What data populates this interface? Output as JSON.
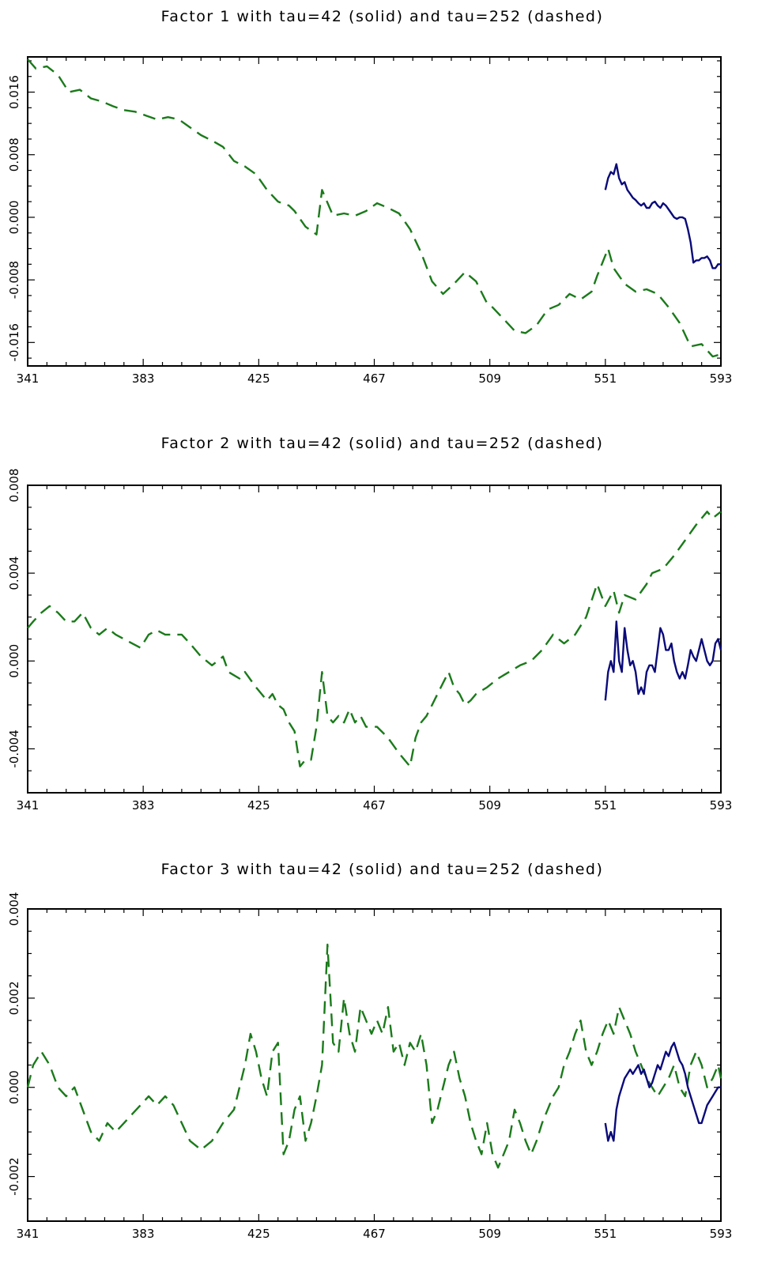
{
  "chart_data": [
    {
      "type": "line",
      "title": "Factor 1 with tau=42 (solid) and tau=252 (dashed)",
      "xlabel": "",
      "ylabel": "",
      "xlim": [
        341,
        593
      ],
      "ylim": [
        -0.019,
        0.0205
      ],
      "xticks": [
        341,
        383,
        425,
        467,
        509,
        551,
        593
      ],
      "xtick_labels": [
        "341",
        "383",
        "425",
        "467",
        "509",
        "551",
        "593"
      ],
      "yticks": [
        -0.016,
        -0.008,
        0.0,
        0.008,
        0.016
      ],
      "ytick_labels": [
        "-0.016",
        "-0.008",
        "0.000",
        "0.008",
        "0.016"
      ],
      "grid": false,
      "series": [
        {
          "style": "dashed",
          "color": "#1a7a1a",
          "x": [
            341,
            344,
            348,
            352,
            356,
            360,
            364,
            368,
            372,
            376,
            380,
            384,
            388,
            392,
            396,
            400,
            404,
            408,
            412,
            416,
            420,
            424,
            428,
            432,
            436,
            438,
            442,
            446,
            448,
            452,
            456,
            460,
            464,
            468,
            472,
            476,
            480,
            484,
            488,
            492,
            496,
            500,
            504,
            508,
            510,
            514,
            518,
            522,
            526,
            530,
            534,
            538,
            542,
            546,
            548,
            552,
            554,
            558,
            562,
            566,
            570,
            574,
            578,
            582,
            586,
            590,
            593
          ],
          "y": [
            0.0202,
            0.019,
            0.0193,
            0.0182,
            0.016,
            0.0163,
            0.0152,
            0.0148,
            0.0142,
            0.0137,
            0.0135,
            0.013,
            0.0125,
            0.0128,
            0.0125,
            0.0115,
            0.0105,
            0.0098,
            0.009,
            0.0072,
            0.0065,
            0.0055,
            0.0035,
            0.002,
            0.0015,
            0.0008,
            -0.0012,
            -0.0022,
            0.0035,
            0.0002,
            0.0005,
            0.0002,
            0.0008,
            0.0018,
            0.0012,
            0.0005,
            -0.0015,
            -0.0045,
            -0.0082,
            -0.0098,
            -0.0085,
            -0.007,
            -0.0082,
            -0.011,
            -0.0115,
            -0.013,
            -0.0145,
            -0.0148,
            -0.0138,
            -0.0118,
            -0.0112,
            -0.0098,
            -0.0105,
            -0.0095,
            -0.0075,
            -0.004,
            -0.0065,
            -0.0085,
            -0.0095,
            -0.0092,
            -0.0098,
            -0.0115,
            -0.0135,
            -0.0165,
            -0.0162,
            -0.0178,
            -0.0175
          ]
        },
        {
          "style": "solid",
          "color": "#0a0a7a",
          "x": [
            551,
            552,
            553,
            554,
            555,
            556,
            557,
            558,
            559,
            560,
            561,
            562,
            563,
            564,
            565,
            566,
            567,
            568,
            569,
            570,
            571,
            572,
            573,
            574,
            575,
            576,
            577,
            578,
            579,
            580,
            581,
            582,
            583,
            584,
            585,
            586,
            587,
            588,
            589,
            590,
            591,
            592,
            593
          ],
          "y": [
            0.0035,
            0.005,
            0.0058,
            0.0055,
            0.0068,
            0.005,
            0.0042,
            0.0045,
            0.0035,
            0.003,
            0.0025,
            0.0022,
            0.0018,
            0.0015,
            0.0018,
            0.0012,
            0.0012,
            0.0018,
            0.002,
            0.0015,
            0.0012,
            0.0018,
            0.0015,
            0.001,
            0.0005,
            0.0,
            -0.0002,
            0.0,
            0.0,
            -0.0002,
            -0.0015,
            -0.0032,
            -0.0058,
            -0.0055,
            -0.0055,
            -0.0052,
            -0.0052,
            -0.005,
            -0.0055,
            -0.0065,
            -0.0065,
            -0.006,
            -0.006
          ]
        }
      ]
    },
    {
      "type": "line",
      "title": "Factor 2 with tau=42 (solid) and tau=252 (dashed)",
      "xlabel": "",
      "ylabel": "",
      "xlim": [
        341,
        593
      ],
      "ylim": [
        -0.006,
        0.008
      ],
      "xticks": [
        341,
        383,
        425,
        467,
        509,
        551,
        593
      ],
      "xtick_labels": [
        "341",
        "383",
        "425",
        "467",
        "509",
        "551",
        "593"
      ],
      "yticks": [
        -0.004,
        0.0,
        0.004,
        0.008
      ],
      "ytick_labels": [
        "-0.004",
        "0.000",
        "0.004",
        "0.008"
      ],
      "grid": false,
      "series": [
        {
          "style": "dashed",
          "color": "#1a7a1a",
          "x": [
            341,
            343,
            346,
            349,
            352,
            355,
            358,
            361,
            364,
            367,
            370,
            373,
            376,
            379,
            382,
            385,
            388,
            391,
            394,
            397,
            400,
            404,
            408,
            412,
            414,
            418,
            420,
            424,
            428,
            430,
            432,
            434,
            436,
            438,
            440,
            442,
            444,
            446,
            448,
            450,
            452,
            454,
            456,
            458,
            460,
            462,
            464,
            468,
            472,
            476,
            480,
            482,
            484,
            486,
            488,
            490,
            492,
            494,
            496,
            498,
            500,
            502,
            504,
            508,
            512,
            516,
            520,
            524,
            528,
            532,
            536,
            540,
            544,
            548,
            551,
            554,
            556,
            558,
            562,
            566,
            568,
            572,
            576,
            580,
            584,
            588,
            590,
            593
          ],
          "y": [
            0.0015,
            0.0018,
            0.0022,
            0.0025,
            0.0022,
            0.0018,
            0.0018,
            0.0022,
            0.0015,
            0.0012,
            0.0015,
            0.0012,
            0.001,
            0.0008,
            0.0006,
            0.0012,
            0.0014,
            0.0012,
            0.0012,
            0.0012,
            0.0008,
            0.0002,
            -0.0002,
            0.0002,
            -0.0005,
            -0.0008,
            -0.0005,
            -0.0012,
            -0.0018,
            -0.0015,
            -0.002,
            -0.0022,
            -0.0028,
            -0.0032,
            -0.0048,
            -0.0045,
            -0.0045,
            -0.003,
            -0.0005,
            -0.0025,
            -0.0028,
            -0.0025,
            -0.0028,
            -0.0022,
            -0.0028,
            -0.0025,
            -0.003,
            -0.003,
            -0.0035,
            -0.0042,
            -0.0048,
            -0.0035,
            -0.0028,
            -0.0025,
            -0.002,
            -0.0015,
            -0.001,
            -0.0005,
            -0.0012,
            -0.0015,
            -0.002,
            -0.0018,
            -0.0015,
            -0.0012,
            -0.0008,
            -0.0005,
            -0.0002,
            0.0,
            0.0005,
            0.0012,
            0.0008,
            0.0012,
            0.002,
            0.0035,
            0.0025,
            0.0032,
            0.0022,
            0.003,
            0.0028,
            0.0035,
            0.004,
            0.0042,
            0.0048,
            0.0055,
            0.0062,
            0.0068,
            0.0065,
            0.0068
          ]
        },
        {
          "style": "solid",
          "color": "#0a0a7a",
          "x": [
            551,
            552,
            553,
            554,
            555,
            556,
            557,
            558,
            559,
            560,
            561,
            562,
            563,
            564,
            565,
            566,
            567,
            568,
            569,
            570,
            571,
            572,
            573,
            574,
            575,
            576,
            577,
            578,
            579,
            580,
            581,
            582,
            583,
            584,
            585,
            586,
            587,
            588,
            589,
            590,
            591,
            592,
            593
          ],
          "y": [
            -0.0018,
            -0.0005,
            0.0,
            -0.0005,
            0.0018,
            0.0,
            -0.0005,
            0.0015,
            0.0005,
            -0.0002,
            0.0,
            -0.0005,
            -0.0015,
            -0.0012,
            -0.0015,
            -0.0005,
            -0.0002,
            -0.0002,
            -0.0005,
            0.0005,
            0.0015,
            0.0012,
            0.0005,
            0.0005,
            0.0008,
            0.0,
            -0.0005,
            -0.0008,
            -0.0005,
            -0.0008,
            -0.0002,
            0.0005,
            0.0002,
            0.0,
            0.0005,
            0.001,
            0.0005,
            0.0,
            -0.0002,
            0.0,
            0.0008,
            0.001,
            0.0005
          ]
        }
      ]
    },
    {
      "type": "line",
      "title": "Factor 3 with tau=42 (solid) and tau=252 (dashed)",
      "xlabel": "",
      "ylabel": "",
      "xlim": [
        341,
        593
      ],
      "ylim": [
        -0.003,
        0.004
      ],
      "xticks": [
        341,
        383,
        425,
        467,
        509,
        551,
        593
      ],
      "xtick_labels": [
        "341",
        "383",
        "425",
        "467",
        "509",
        "551",
        "593"
      ],
      "yticks": [
        -0.002,
        0.0,
        0.002,
        0.004
      ],
      "ytick_labels": [
        "-0.002",
        "0.000",
        "0.002",
        "0.004"
      ],
      "grid": false,
      "series": [
        {
          "style": "dashed",
          "color": "#1a7a1a",
          "x": [
            341,
            343,
            346,
            349,
            352,
            355,
            358,
            361,
            364,
            367,
            370,
            373,
            376,
            379,
            382,
            385,
            388,
            391,
            394,
            397,
            400,
            404,
            408,
            412,
            416,
            418,
            420,
            422,
            424,
            426,
            428,
            430,
            432,
            434,
            436,
            438,
            440,
            442,
            444,
            446,
            448,
            450,
            452,
            454,
            456,
            458,
            460,
            462,
            464,
            466,
            468,
            470,
            472,
            474,
            476,
            478,
            480,
            482,
            484,
            486,
            488,
            490,
            492,
            494,
            496,
            498,
            500,
            502,
            504,
            506,
            508,
            510,
            512,
            514,
            516,
            518,
            520,
            522,
            524,
            526,
            528,
            530,
            532,
            534,
            536,
            538,
            540,
            542,
            544,
            546,
            548,
            550,
            552,
            554,
            556,
            558,
            560,
            562,
            564,
            566,
            568,
            570,
            572,
            574,
            576,
            578,
            580,
            582,
            584,
            586,
            588,
            590,
            592,
            593
          ],
          "y": [
            0.0,
            0.0005,
            0.0008,
            0.0005,
            0.0,
            -0.0002,
            0.0,
            -0.0005,
            -0.001,
            -0.0012,
            -0.0008,
            -0.001,
            -0.0008,
            -0.0006,
            -0.0004,
            -0.0002,
            -0.0004,
            -0.0002,
            -0.0004,
            -0.0008,
            -0.0012,
            -0.0014,
            -0.0012,
            -0.0008,
            -0.0005,
            0.0,
            0.0005,
            0.0012,
            0.0008,
            0.0002,
            -0.0002,
            0.0008,
            0.001,
            -0.0015,
            -0.0012,
            -0.0005,
            -0.0002,
            -0.0012,
            -0.0008,
            -0.0002,
            0.0005,
            0.0032,
            0.001,
            0.0008,
            0.002,
            0.0012,
            0.0008,
            0.0018,
            0.0015,
            0.0012,
            0.0015,
            0.0012,
            0.0018,
            0.0008,
            0.001,
            0.0005,
            0.001,
            0.0008,
            0.0012,
            0.0005,
            -0.0008,
            -0.0005,
            0.0,
            0.0005,
            0.0008,
            0.0002,
            -0.0002,
            -0.0008,
            -0.0012,
            -0.0015,
            -0.0008,
            -0.0015,
            -0.0018,
            -0.0015,
            -0.0012,
            -0.0005,
            -0.0008,
            -0.0012,
            -0.0015,
            -0.0012,
            -0.0008,
            -0.0005,
            -0.0002,
            0.0,
            0.0005,
            0.0008,
            0.0012,
            0.0015,
            0.0008,
            0.0005,
            0.0008,
            0.0012,
            0.0015,
            0.0012,
            0.0018,
            0.0015,
            0.0012,
            0.0008,
            0.0005,
            0.0002,
            0.0,
            -0.0002,
            0.0,
            0.0002,
            0.0005,
            0.0,
            -0.0002,
            0.0005,
            0.0008,
            0.0005,
            0.0,
            0.0002,
            0.0005,
            0.0002
          ]
        },
        {
          "style": "solid",
          "color": "#0a0a7a",
          "x": [
            551,
            552,
            553,
            554,
            555,
            556,
            557,
            558,
            559,
            560,
            561,
            562,
            563,
            564,
            565,
            566,
            567,
            568,
            569,
            570,
            571,
            572,
            573,
            574,
            575,
            576,
            577,
            578,
            579,
            580,
            581,
            582,
            583,
            584,
            585,
            586,
            587,
            588,
            589,
            590,
            591,
            592,
            593
          ],
          "y": [
            -0.0008,
            -0.0012,
            -0.001,
            -0.0012,
            -0.0005,
            -0.0002,
            0.0,
            0.0002,
            0.0003,
            0.0004,
            0.0003,
            0.0004,
            0.0005,
            0.0003,
            0.0004,
            0.0002,
            0.0,
            0.0001,
            0.0003,
            0.0005,
            0.0004,
            0.0006,
            0.0008,
            0.0007,
            0.0009,
            0.001,
            0.0008,
            0.0006,
            0.0005,
            0.0003,
            0.0,
            -0.0002,
            -0.0004,
            -0.0006,
            -0.0008,
            -0.0008,
            -0.0006,
            -0.0004,
            -0.0003,
            -0.0002,
            -0.0001,
            0.0,
            0.0
          ]
        }
      ]
    }
  ]
}
